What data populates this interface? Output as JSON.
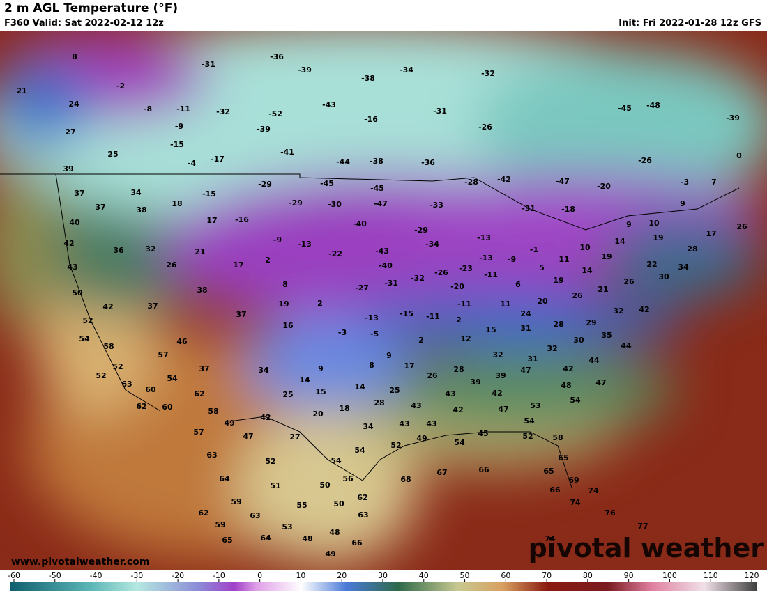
{
  "header": {
    "title": "2 m AGL Temperature (°F)",
    "valid": "F360 Valid: Sat 2022-02-12 12z",
    "init": "Init: Fri 2022-01-28 12z GFS"
  },
  "map": {
    "labels": [
      8,
      21,
      24,
      27,
      25,
      -2,
      -8,
      -11,
      -9,
      -15,
      -4,
      -17,
      -31,
      -36,
      -39,
      -32,
      -52,
      -39,
      -41,
      -38,
      -34,
      -43,
      -16,
      -31,
      -26,
      -32,
      -44,
      -38,
      -36,
      -45,
      -48,
      -39,
      -26,
      -47,
      -20,
      -3,
      7,
      9,
      0,
      39,
      37,
      34,
      38,
      37,
      40,
      42,
      36,
      32,
      43,
      50,
      42,
      37,
      52,
      54,
      58,
      52,
      52,
      63,
      60,
      62,
      60,
      57,
      46,
      54,
      37,
      62,
      58,
      49,
      57,
      47,
      63,
      64,
      59,
      62,
      59,
      63,
      65,
      64,
      53,
      48,
      49,
      48,
      66,
      63,
      50,
      55,
      51,
      52,
      50,
      56,
      62,
      54,
      54,
      52,
      49,
      68,
      67,
      66,
      54,
      45,
      52,
      58,
      65,
      65,
      69,
      66,
      74,
      74,
      76,
      77,
      74,
      18,
      -15,
      17,
      -16,
      21,
      26,
      17,
      2,
      -9,
      38,
      8,
      19,
      37,
      16,
      2,
      -29,
      -29,
      -45,
      -30,
      -45,
      -47,
      -40,
      -13,
      -22,
      -43,
      -40,
      -27,
      -31,
      -32,
      -26,
      -23,
      -29,
      -34,
      -33,
      -28,
      -42,
      -31,
      -18,
      -13,
      -13,
      -9,
      -1,
      11,
      10,
      14,
      19,
      14,
      19,
      9,
      10,
      19,
      17,
      26,
      28,
      22,
      34,
      30,
      26,
      21,
      26,
      20,
      6,
      11,
      5,
      -11,
      -20,
      -11,
      -11,
      -15,
      -13,
      -3,
      -5,
      2,
      12,
      2,
      15,
      31,
      24,
      28,
      29,
      32,
      35,
      30,
      42,
      44,
      44,
      32,
      32,
      31,
      42,
      47,
      48,
      54,
      53,
      54,
      47,
      42,
      47,
      39,
      39,
      26,
      28,
      17,
      9,
      8,
      9,
      14,
      15,
      14,
      25,
      28,
      18,
      20,
      25,
      34,
      42,
      27,
      34,
      43,
      43,
      42,
      43,
      43
    ]
  },
  "footer": {
    "website": "www.pivotalweather.com",
    "brand": "pivotal weather"
  },
  "colorbar": {
    "ticks": [
      -60,
      -50,
      -40,
      -30,
      -20,
      -10,
      0,
      10,
      20,
      30,
      40,
      50,
      60,
      70,
      80,
      90,
      100,
      110,
      120
    ]
  }
}
